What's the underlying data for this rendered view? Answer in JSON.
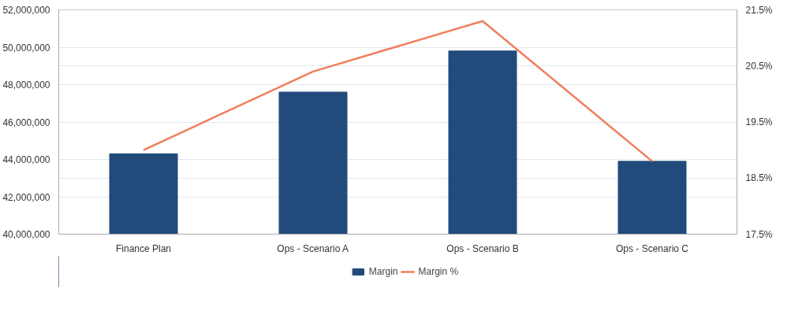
{
  "chart_data": {
    "type": "bar",
    "categories": [
      "Finance Plan",
      "Ops - Scenario A",
      "Ops - Scenario B",
      "Ops - Scenario C"
    ],
    "series": [
      {
        "name": "Margin",
        "color": "#224b7c",
        "values": [
          44300000,
          47600000,
          49800000,
          43900000
        ]
      },
      {
        "name": "Margin %",
        "type": "line",
        "axis": "y2",
        "color": "#f07f5b",
        "values": [
          19.0,
          20.4,
          21.3,
          18.8
        ]
      }
    ],
    "ylim": [
      40000000,
      52000000
    ],
    "yticks": [
      {
        "value": 40000000,
        "label": "40,000,000"
      },
      {
        "value": 42000000,
        "label": "42,000,000"
      },
      {
        "value": 44000000,
        "label": "44,000,000"
      },
      {
        "value": 46000000,
        "label": "46,000,000"
      },
      {
        "value": 48000000,
        "label": "48,000,000"
      },
      {
        "value": 50000000,
        "label": "50,000,000"
      },
      {
        "value": 52000000,
        "label": "52,000,000"
      }
    ],
    "y2lim": [
      17.5,
      21.5
    ],
    "y2ticks": [
      {
        "value": 17.5,
        "label": "17.5%"
      },
      {
        "value": 18.5,
        "label": "18.5%"
      },
      {
        "value": 19.5,
        "label": "19.5%"
      },
      {
        "value": 20.5,
        "label": "20.5%"
      },
      {
        "value": 21.5,
        "label": "21.5%"
      }
    ],
    "grid": true,
    "legend": "bottom"
  }
}
